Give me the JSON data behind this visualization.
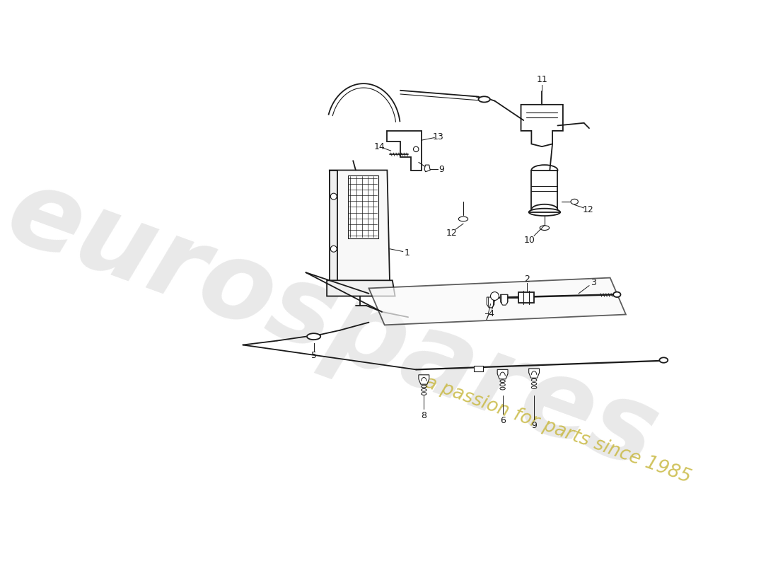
{
  "background_color": "#ffffff",
  "line_color": "#1a1a1a",
  "watermark_text1": "eurospares",
  "watermark_text2": "a passion for parts since 1985",
  "watermark_color1": "#c0c0c0",
  "watermark_color2": "#c8b840"
}
